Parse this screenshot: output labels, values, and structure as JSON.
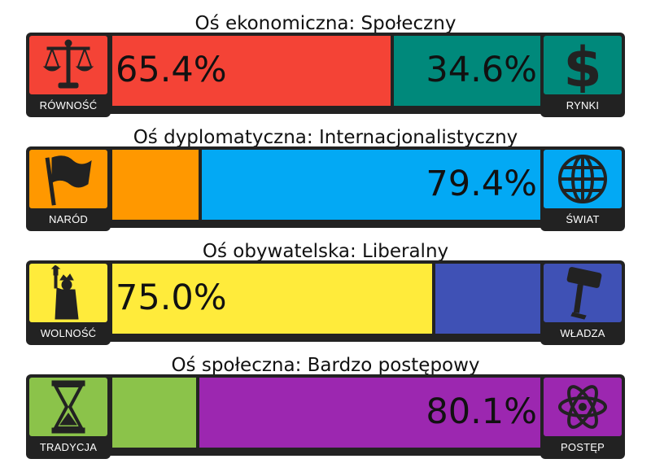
{
  "chart_data": {
    "type": "bar",
    "orientation": "horizontal-stacked",
    "axes": [
      {
        "title": "Oś ekonomiczna: Społeczny",
        "left": {
          "label": "RÓWNOŚĆ",
          "value": 65.4,
          "text": "65.4%",
          "color": "#f44336",
          "icon": "scales-icon"
        },
        "right": {
          "label": "RYNKI",
          "value": 34.6,
          "text": "34.6%",
          "color": "#00897b",
          "icon": "dollar-icon"
        }
      },
      {
        "title": "Oś dyplomatyczna: Internacjonalistyczny",
        "left": {
          "label": "NARÓD",
          "value": 20.6,
          "text": "",
          "color": "#ff9800",
          "icon": "flag-icon"
        },
        "right": {
          "label": "ŚWIAT",
          "value": 79.4,
          "text": "79.4%",
          "color": "#03a9f4",
          "icon": "globe-icon"
        }
      },
      {
        "title": "Oś obywatelska: Liberalny",
        "left": {
          "label": "WOLNOŚĆ",
          "value": 75.0,
          "text": "75.0%",
          "color": "#ffeb3b",
          "icon": "liberty-icon"
        },
        "right": {
          "label": "WŁADZA",
          "value": 25.0,
          "text": "",
          "color": "#3f51b5",
          "icon": "gavel-icon"
        }
      },
      {
        "title": "Oś społeczna: Bardzo postępowy",
        "left": {
          "label": "TRADYCJA",
          "value": 19.9,
          "text": "",
          "color": "#8bc34a",
          "icon": "hourglass-icon"
        },
        "right": {
          "label": "POSTĘP",
          "value": 80.1,
          "text": "80.1%",
          "color": "#9c27b0",
          "icon": "atom-icon"
        }
      }
    ],
    "xlim": [
      0,
      100
    ]
  }
}
